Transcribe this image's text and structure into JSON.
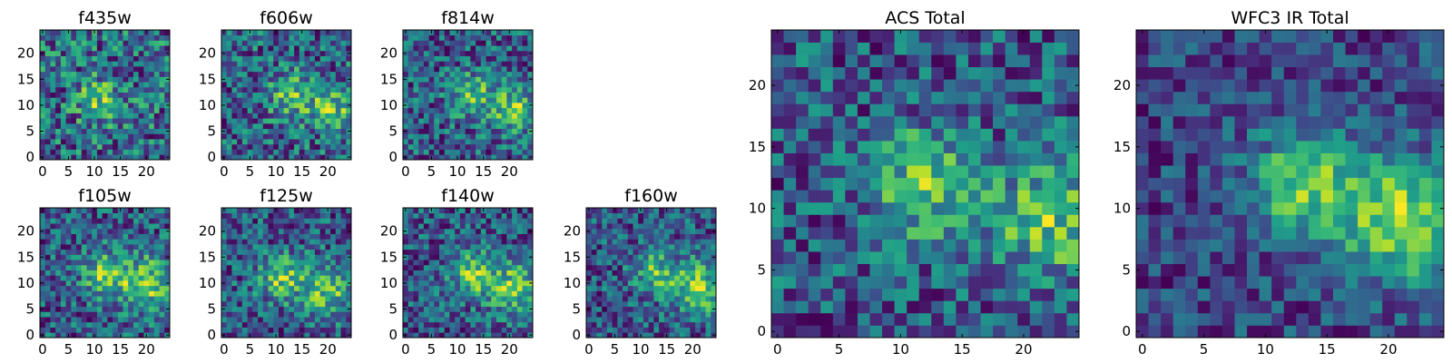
{
  "chart_data": [
    {
      "type": "heatmap",
      "title": "f435w",
      "colormap": "viridis",
      "x_ticks": [
        "0",
        "5",
        "10",
        "15",
        "20"
      ],
      "y_ticks": [
        "0",
        "5",
        "10",
        "15",
        "20"
      ],
      "xlim": [
        0,
        24
      ],
      "ylim": [
        0,
        24
      ],
      "grid": false,
      "peaks": [
        {
          "x": 11,
          "y": 11,
          "sigma": 3,
          "amp": 0.35
        }
      ],
      "noise": 0.45,
      "seed": 11
    },
    {
      "type": "heatmap",
      "title": "f606w",
      "colormap": "viridis",
      "x_ticks": [
        "0",
        "5",
        "10",
        "15",
        "20"
      ],
      "y_ticks": [
        "0",
        "5",
        "10",
        "15",
        "20"
      ],
      "xlim": [
        0,
        24
      ],
      "ylim": [
        0,
        24
      ],
      "grid": false,
      "peaks": [
        {
          "x": 13,
          "y": 12,
          "sigma": 3,
          "amp": 0.5
        },
        {
          "x": 21,
          "y": 9,
          "sigma": 3,
          "amp": 0.5
        }
      ],
      "noise": 0.5,
      "seed": 23
    },
    {
      "type": "heatmap",
      "title": "f814w",
      "colormap": "viridis",
      "x_ticks": [
        "0",
        "5",
        "10",
        "15",
        "20"
      ],
      "y_ticks": [
        "0",
        "5",
        "10",
        "15",
        "20"
      ],
      "xlim": [
        0,
        24
      ],
      "ylim": [
        0,
        24
      ],
      "grid": false,
      "peaks": [
        {
          "x": 13,
          "y": 12,
          "sigma": 3,
          "amp": 0.5
        },
        {
          "x": 21,
          "y": 9,
          "sigma": 3,
          "amp": 0.6
        }
      ],
      "noise": 0.5,
      "seed": 37
    },
    {
      "type": "heatmap",
      "title": "f105w",
      "colormap": "viridis",
      "x_ticks": [
        "0",
        "5",
        "10",
        "15",
        "20"
      ],
      "y_ticks": [
        "0",
        "5",
        "10",
        "15",
        "20"
      ],
      "xlim": [
        0,
        24
      ],
      "ylim": [
        0,
        24
      ],
      "grid": false,
      "peaks": [
        {
          "x": 12,
          "y": 12,
          "sigma": 3,
          "amp": 0.55
        },
        {
          "x": 20,
          "y": 10,
          "sigma": 3.5,
          "amp": 0.6
        }
      ],
      "noise": 0.45,
      "seed": 41
    },
    {
      "type": "heatmap",
      "title": "f125w",
      "colormap": "viridis",
      "x_ticks": [
        "0",
        "5",
        "10",
        "15",
        "20"
      ],
      "y_ticks": [
        "0",
        "5",
        "10",
        "15",
        "20"
      ],
      "xlim": [
        0,
        24
      ],
      "ylim": [
        0,
        24
      ],
      "grid": false,
      "peaks": [
        {
          "x": 11,
          "y": 11,
          "sigma": 3,
          "amp": 0.55
        },
        {
          "x": 20,
          "y": 9,
          "sigma": 3.5,
          "amp": 0.55
        }
      ],
      "noise": 0.45,
      "seed": 53
    },
    {
      "type": "heatmap",
      "title": "f140w",
      "colormap": "viridis",
      "x_ticks": [
        "0",
        "5",
        "10",
        "15",
        "20"
      ],
      "y_ticks": [
        "0",
        "5",
        "10",
        "15",
        "20"
      ],
      "xlim": [
        0,
        24
      ],
      "ylim": [
        0,
        24
      ],
      "grid": false,
      "peaks": [
        {
          "x": 13,
          "y": 12,
          "sigma": 3,
          "amp": 0.6
        },
        {
          "x": 21,
          "y": 9,
          "sigma": 3.5,
          "amp": 0.6
        }
      ],
      "noise": 0.45,
      "seed": 67
    },
    {
      "type": "heatmap",
      "title": "f160w",
      "colormap": "viridis",
      "x_ticks": [
        "0",
        "5",
        "10",
        "15",
        "20"
      ],
      "y_ticks": [
        "0",
        "5",
        "10",
        "15",
        "20"
      ],
      "xlim": [
        0,
        24
      ],
      "ylim": [
        0,
        24
      ],
      "grid": false,
      "peaks": [
        {
          "x": 13,
          "y": 12,
          "sigma": 3,
          "amp": 0.5
        },
        {
          "x": 21,
          "y": 9,
          "sigma": 3.5,
          "amp": 0.65
        }
      ],
      "noise": 0.45,
      "seed": 79
    },
    {
      "type": "heatmap",
      "title": "ACS Total",
      "colormap": "viridis",
      "x_ticks": [
        "0",
        "5",
        "10",
        "15",
        "20"
      ],
      "y_ticks": [
        "0",
        "5",
        "10",
        "15",
        "20"
      ],
      "xlim": [
        0,
        24
      ],
      "ylim": [
        0,
        24
      ],
      "grid": false,
      "peaks": [
        {
          "x": 12,
          "y": 12,
          "sigma": 3,
          "amp": 0.45
        },
        {
          "x": 22,
          "y": 9,
          "sigma": 3,
          "amp": 0.45
        }
      ],
      "noise": 0.35,
      "seed": 97
    },
    {
      "type": "heatmap",
      "title": "WFC3 IR Total",
      "colormap": "viridis",
      "x_ticks": [
        "0",
        "5",
        "10",
        "15",
        "20"
      ],
      "y_ticks": [
        "0",
        "5",
        "10",
        "15",
        "20"
      ],
      "xlim": [
        0,
        24
      ],
      "ylim": [
        0,
        24
      ],
      "grid": false,
      "peaks": [
        {
          "x": 13,
          "y": 12,
          "sigma": 3,
          "amp": 0.6
        },
        {
          "x": 21,
          "y": 9,
          "sigma": 3.5,
          "amp": 0.7
        }
      ],
      "noise": 0.3,
      "seed": 113
    }
  ]
}
